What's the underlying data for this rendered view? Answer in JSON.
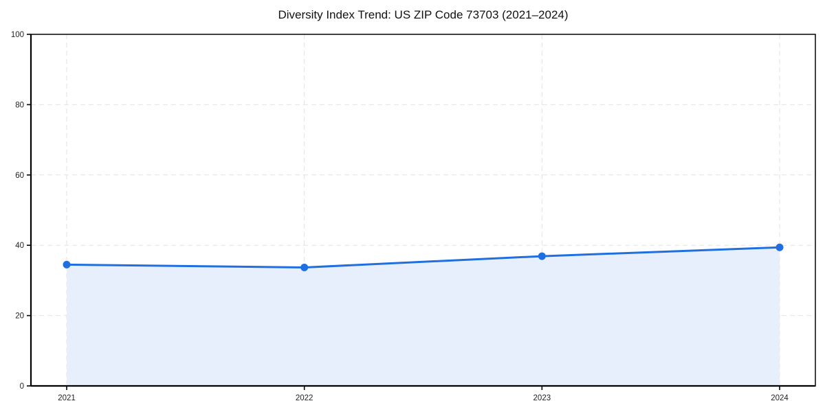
{
  "chart_data": {
    "type": "area",
    "title": "Diversity Index Trend: US ZIP Code 73703 (2021–2024)",
    "categories": [
      "2021",
      "2022",
      "2023",
      "2024"
    ],
    "series": [
      {
        "name": "Diversity Index",
        "values": [
          34.5,
          33.7,
          36.9,
          39.4
        ]
      }
    ],
    "xlabel": "",
    "ylabel": "",
    "ylim": [
      0,
      100
    ],
    "yticks": [
      0,
      20,
      40,
      60,
      80,
      100
    ],
    "grid": true,
    "grid_style": "dashed",
    "legend": "none",
    "markers": "circle",
    "colors": {
      "line": "#1f6fe0",
      "marker": "#1f6fe0",
      "fill": "#e8effc",
      "grid": "#e2e2e2",
      "axis": "#000000",
      "tick_text": "#222222",
      "background": "#ffffff"
    }
  }
}
